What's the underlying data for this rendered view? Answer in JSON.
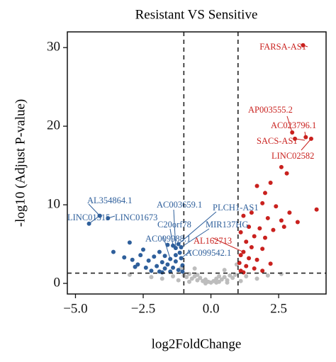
{
  "chart_data": {
    "type": "scatter",
    "title": "Resistant VS Sensitive",
    "x_label": "log2FoldChange",
    "y_label": "-log10 (Adjust P-value)",
    "xlim": [
      -5.3,
      4.25
    ],
    "ylim": [
      -1.35,
      32
    ],
    "xticks": [
      {
        "value": -5,
        "label": "−5.0"
      },
      {
        "value": -2.5,
        "label": "−2.5"
      },
      {
        "value": 0,
        "label": "0.0"
      },
      2.5
    ],
    "yticks": [
      0,
      10,
      20,
      30
    ],
    "vlines": [
      -1,
      1
    ],
    "hline": 1.3,
    "series": [
      {
        "color": "#bdbdbd",
        "x": [
          -1.0,
          -0.9,
          -0.8,
          -0.7,
          -0.6,
          -0.5,
          -0.4,
          -0.3,
          -0.2,
          -0.1,
          0.0,
          0.1,
          0.2,
          0.3,
          0.4,
          0.5,
          0.6,
          0.7,
          0.8,
          0.9,
          -0.5,
          0.3,
          -1.4,
          -1.8,
          -2.2,
          1.3,
          1.7,
          2.1,
          -0.2,
          0.2,
          -1.2,
          1.1,
          -0.8,
          0.6,
          -3.0,
          2.6,
          -1.1,
          0.95,
          -0.6,
          0.5
        ],
        "values": [
          1.0,
          0.8,
          1.2,
          0.6,
          0.9,
          0.4,
          0.7,
          0.3,
          0.5,
          0.2,
          0.1,
          0.3,
          0.6,
          0.2,
          0.5,
          0.8,
          0.4,
          1.0,
          0.7,
          1.1,
          1.1,
          0.9,
          0.9,
          0.6,
          0.8,
          0.9,
          0.6,
          1.0,
          0.0,
          0.1,
          0.4,
          0.3,
          0.2,
          0.1,
          1.1,
          1.2,
          2.0,
          2.4,
          1.9,
          1.7
        ]
      },
      {
        "color": "#2e5f9b",
        "x": [
          -4.5,
          -4.1,
          -3.8,
          -3.6,
          -3.2,
          -3.0,
          -2.9,
          -2.7,
          -2.6,
          -2.5,
          -2.4,
          -2.3,
          -2.2,
          -2.1,
          -2.0,
          -1.9,
          -1.9,
          -1.8,
          -1.7,
          -1.7,
          -1.6,
          -1.6,
          -1.5,
          -1.5,
          -1.4,
          -1.4,
          -1.3,
          -1.3,
          -1.2,
          -1.2,
          -1.15,
          -1.1,
          -1.1,
          -1.05,
          -1.05,
          -1.3,
          -1.8,
          -2.8
        ],
        "values": [
          7.6,
          8.6,
          8.3,
          4.0,
          3.3,
          5.2,
          3.0,
          2.4,
          3.6,
          4.3,
          2.0,
          2.9,
          1.6,
          3.4,
          2.2,
          4.0,
          1.5,
          2.7,
          3.5,
          1.9,
          4.9,
          2.4,
          1.5,
          3.1,
          4.8,
          2.0,
          4.5,
          2.8,
          5.0,
          1.7,
          3.9,
          3.2,
          4.6,
          2.3,
          1.5,
          3.6,
          1.4,
          2.1
        ]
      },
      {
        "color": "#c9211e",
        "x": [
          3.4,
          3.0,
          3.5,
          3.1,
          3.7,
          2.6,
          2.8,
          2.2,
          2.0,
          1.7,
          1.9,
          2.4,
          2.9,
          3.9,
          1.5,
          1.2,
          2.1,
          2.6,
          3.2,
          1.4,
          1.8,
          2.3,
          1.1,
          1.6,
          2.0,
          2.7,
          1.3,
          1.2,
          1.5,
          1.9,
          1.1,
          1.4,
          1.7,
          1.05,
          1.3,
          1.6,
          1.1,
          2.2,
          1.2,
          1.9
        ],
        "values": [
          30.3,
          19.2,
          18.6,
          18.4,
          18.4,
          14.8,
          14.0,
          12.8,
          11.5,
          12.4,
          10.2,
          9.8,
          9.0,
          9.4,
          9.0,
          8.6,
          8.3,
          8.0,
          7.8,
          7.2,
          7.0,
          6.8,
          6.5,
          6.0,
          5.8,
          7.2,
          5.3,
          4.0,
          4.6,
          4.4,
          3.6,
          3.2,
          3.0,
          2.6,
          2.2,
          1.9,
          1.6,
          2.5,
          1.4,
          1.6
        ]
      }
    ],
    "annotations": [
      {
        "text": "FARSA-AS1",
        "x": 3.4,
        "y": 30.3,
        "color": "#c9211e"
      },
      {
        "text": "AP003555.2",
        "x": 3.0,
        "y": 19.2,
        "color": "#c9211e"
      },
      {
        "text": "AC023796.1",
        "x": 3.5,
        "y": 18.6,
        "color": "#c9211e"
      },
      {
        "text": "SACS-AS1",
        "x": 3.1,
        "y": 18.4,
        "color": "#c9211e"
      },
      {
        "text": "LINC02582",
        "x": 3.7,
        "y": 18.4,
        "color": "#c9211e"
      },
      {
        "text": "AL354864.1",
        "x": -4.1,
        "y": 8.6,
        "color": "#2e5f9b"
      },
      {
        "text": "LINC01515",
        "x": -4.5,
        "y": 7.6,
        "color": "#2e5f9b"
      },
      {
        "text": "LINC01673",
        "x": -3.8,
        "y": 8.3,
        "color": "#2e5f9b"
      },
      {
        "text": "AC003659.1",
        "x": -1.3,
        "y": 4.5,
        "color": "#2e5f9b"
      },
      {
        "text": "PLCH1-AS1",
        "x": -1.2,
        "y": 5.0,
        "color": "#2e5f9b"
      },
      {
        "text": "C20orf78",
        "x": -1.4,
        "y": 4.8,
        "color": "#2e5f9b"
      },
      {
        "text": "MIR137HG",
        "x": -1.1,
        "y": 4.6,
        "color": "#2e5f9b"
      },
      {
        "text": "AL162713",
        "x": 1.2,
        "y": 4.0,
        "color": "#c9211e"
      },
      {
        "text": "AC009988.1",
        "x": -1.5,
        "y": 3.1,
        "color": "#2e5f9b"
      },
      {
        "text": "AC099542.1",
        "x": -1.1,
        "y": 3.2,
        "color": "#2e5f9b"
      }
    ]
  }
}
